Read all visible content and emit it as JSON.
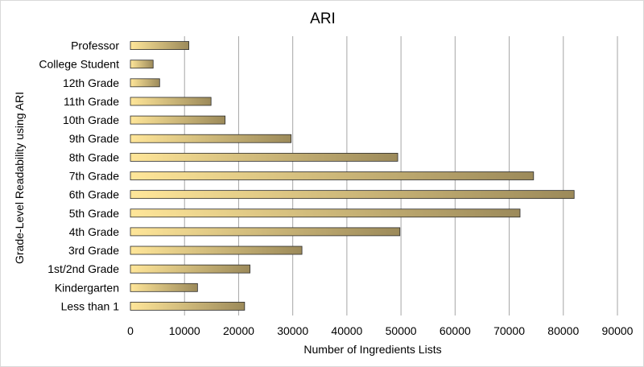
{
  "chart_data": {
    "type": "bar",
    "orientation": "horizontal",
    "title": "ARI",
    "xlabel": "Number of Ingredients Lists",
    "ylabel": "Grade-Level Readability using ARI",
    "xlim": [
      0,
      90000
    ],
    "x_ticks": [
      "0",
      "10000",
      "20000",
      "30000",
      "40000",
      "50000",
      "60000",
      "70000",
      "80000",
      "90000"
    ],
    "grid": "vertical",
    "legend": "none",
    "colors": {
      "bar_start": "#ffe699",
      "bar_end": "#9c8a5a",
      "bar_edge": "#2b2b2b",
      "grid": "#a6a6a6"
    },
    "categories": [
      "Professor",
      "College Student",
      "12th Grade",
      "11th Grade",
      "10th Grade",
      "9th Grade",
      "8th Grade",
      "7th Grade",
      "6th Grade",
      "5th Grade",
      "4th Grade",
      "3rd Grade",
      "1st/2nd Grade",
      "Kindergarten",
      "Less than 1"
    ],
    "values": [
      10800,
      4200,
      5400,
      14900,
      17500,
      29700,
      49400,
      74500,
      82000,
      72000,
      49800,
      31700,
      22100,
      12400,
      21100
    ]
  }
}
